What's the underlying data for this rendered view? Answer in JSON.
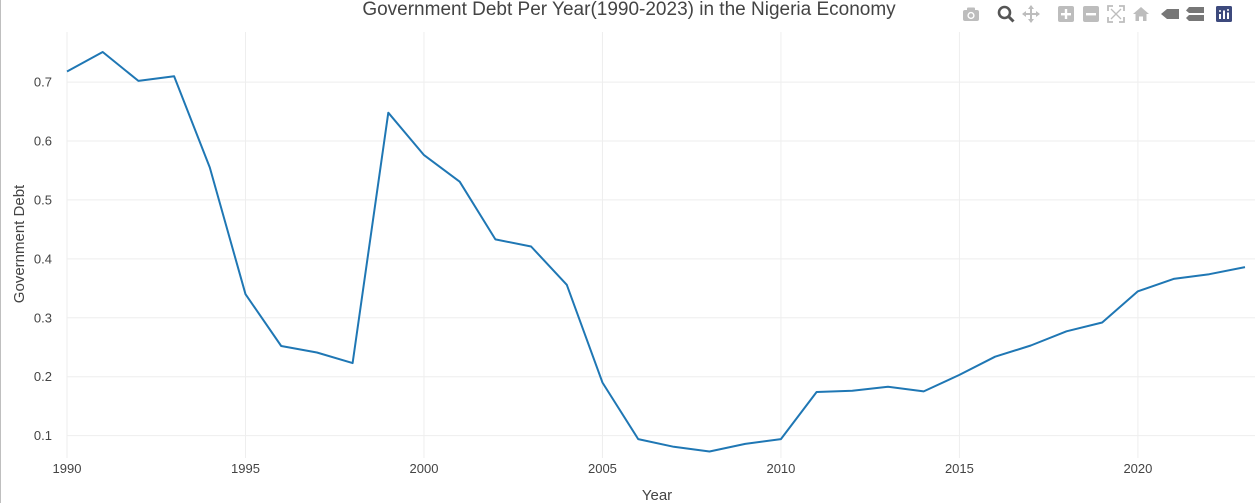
{
  "chart_data": {
    "type": "line",
    "title": "Government Debt Per Year(1990-2023) in the Nigeria Economy",
    "xlabel": "Year",
    "ylabel": "Government Debt",
    "xlim": [
      1990,
      2023
    ],
    "ylim": [
      0.062,
      0.785
    ],
    "x_ticks": [
      1990,
      1995,
      2000,
      2005,
      2010,
      2015,
      2020
    ],
    "y_ticks": [
      0.1,
      0.2,
      0.3,
      0.4,
      0.5,
      0.6,
      0.7
    ],
    "grid": true,
    "line_color": "#1f77b4",
    "series": [
      {
        "x": [
          1990,
          1991,
          1992,
          1993,
          1994,
          1995,
          1996,
          1997,
          1998,
          1999,
          2000,
          2001,
          2002,
          2003,
          2004,
          2005,
          2006,
          2007,
          2008,
          2009,
          2010,
          2011,
          2012,
          2013,
          2014,
          2015,
          2016,
          2017,
          2018,
          2019,
          2020,
          2021,
          2022,
          2023
        ],
        "values": [
          0.718,
          0.751,
          0.702,
          0.71,
          0.555,
          0.34,
          0.252,
          0.241,
          0.223,
          0.648,
          0.576,
          0.531,
          0.433,
          0.421,
          0.356,
          0.19,
          0.094,
          0.081,
          0.073,
          0.086,
          0.094,
          0.174,
          0.176,
          0.183,
          0.175,
          0.203,
          0.234,
          0.253,
          0.277,
          0.292,
          0.345,
          0.366,
          0.374,
          0.386
        ]
      }
    ]
  },
  "modebar": {
    "icons": [
      "camera-icon",
      "zoom-icon",
      "pan-icon",
      "zoom-in-icon",
      "zoom-out-icon",
      "autoscale-icon",
      "reset-axes-icon",
      "spike-lines-icon",
      "compare-hover-icon",
      "plotly-logo-icon"
    ]
  }
}
